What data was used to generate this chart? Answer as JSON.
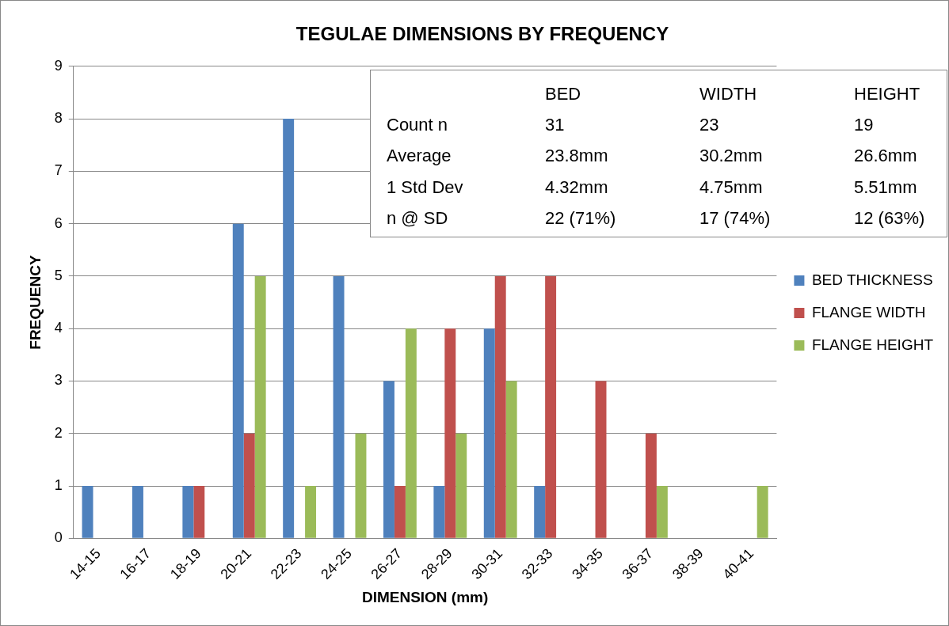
{
  "chart_data": {
    "type": "bar",
    "title": "TEGULAE DIMENSIONS BY FREQUENCY",
    "xlabel": "DIMENSION (mm)",
    "ylabel": "FREQUENCY",
    "categories": [
      "14-15",
      "16-17",
      "18-19",
      "20-21",
      "22-23",
      "24-25",
      "26-27",
      "28-29",
      "30-31",
      "32-33",
      "34-35",
      "36-37",
      "38-39",
      "40-41"
    ],
    "series": [
      {
        "name": "BED THICKNESS",
        "color": "#4f81bd",
        "values": [
          1,
          1,
          1,
          6,
          8,
          5,
          3,
          1,
          4,
          1,
          0,
          0,
          0,
          0
        ]
      },
      {
        "name": "FLANGE WIDTH",
        "color": "#c0504d",
        "values": [
          0,
          0,
          1,
          2,
          0,
          0,
          1,
          4,
          5,
          5,
          3,
          2,
          0,
          0
        ]
      },
      {
        "name": "FLANGE HEIGHT",
        "color": "#9bbb59",
        "values": [
          0,
          0,
          0,
          5,
          1,
          2,
          4,
          2,
          3,
          0,
          0,
          1,
          0,
          1
        ]
      }
    ],
    "ylim": [
      0,
      9
    ],
    "yticks": [
      0,
      1,
      2,
      3,
      4,
      5,
      6,
      7,
      8,
      9
    ],
    "grid": "y",
    "legend": "right",
    "annotations": [
      "BED",
      "WIDTH",
      "HEIGHT",
      "Count n",
      "31",
      "23",
      "19",
      "Average",
      "23.8mm",
      "30.2mm",
      "26.6mm",
      "1 Std Dev",
      "4.32mm",
      "4.75mm",
      "5.51mm",
      "n @ SD",
      "22 (71%)",
      "17 (74%)",
      "12 (63%)"
    ]
  }
}
